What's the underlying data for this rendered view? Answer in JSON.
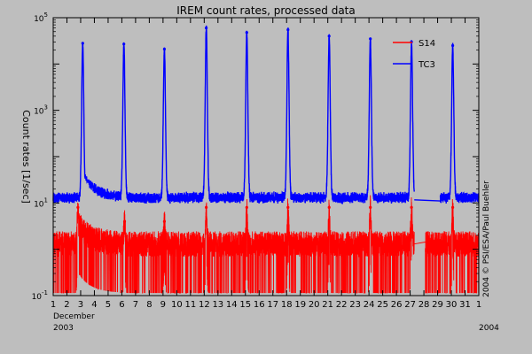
{
  "chart_data": {
    "type": "line",
    "title": "IREM count rates, processed data",
    "ylabel": "Count rates [1/sec]",
    "y_scale": "log",
    "ylim": [
      0.1,
      100000
    ],
    "xlim": [
      1,
      32
    ],
    "yticks": [
      {
        "value": 0.1,
        "base": "10",
        "exp": "-1"
      },
      {
        "value": 10,
        "base": "10",
        "exp": "1"
      },
      {
        "value": 1000,
        "base": "10",
        "exp": "3"
      },
      {
        "value": 100000,
        "base": "10",
        "exp": "5"
      }
    ],
    "x_tick_labels": [
      "1",
      "2",
      "3",
      "4",
      "5",
      "6",
      "7",
      "8",
      "9",
      "10",
      "11",
      "12",
      "13",
      "14",
      "15",
      "16",
      "17",
      "18",
      "19",
      "20",
      "21",
      "22",
      "23",
      "24",
      "25",
      "26",
      "27",
      "28",
      "29",
      "30",
      "31",
      "1"
    ],
    "x_month_label": "December",
    "x_year_start": "2003",
    "x_year_end": "2004",
    "credit": "2004 © PSI/ESA/Paul Buehler",
    "legend_position": "top-right",
    "series": [
      {
        "name": "S14",
        "color": "#ff0000",
        "baseline": 1.3,
        "peak_days": [
          2.8,
          6.2,
          9.1,
          12.15,
          15.1,
          18.1,
          21.1,
          24.1,
          27.1,
          30.1
        ],
        "peak_values": [
          8,
          4,
          4,
          8,
          8,
          8,
          8,
          8,
          8,
          8
        ],
        "gap": [
          27.3,
          28.1
        ]
      },
      {
        "name": "TC3",
        "color": "#0000ff",
        "baseline": 13,
        "peak_days": [
          3.15,
          6.15,
          9.1,
          12.15,
          15.1,
          18.1,
          21.1,
          24.1,
          27.1,
          30.1
        ],
        "peak_values": [
          28000,
          27000,
          21000,
          60000,
          48000,
          55000,
          40000,
          35000,
          30000,
          25000
        ],
        "gap": [
          27.3,
          29.2
        ]
      }
    ]
  }
}
